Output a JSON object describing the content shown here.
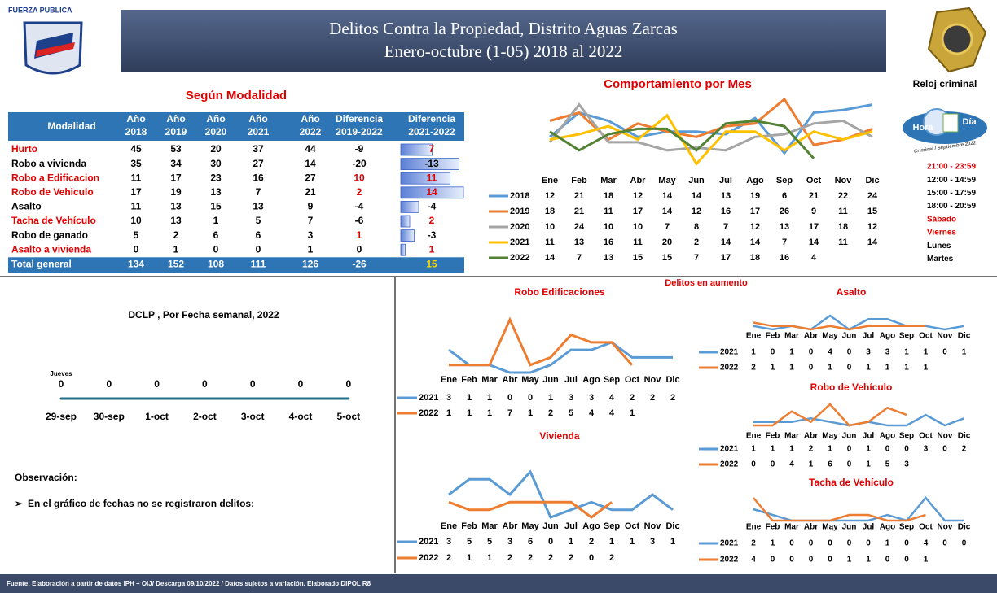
{
  "header": {
    "logo_text": "FUERZA PUBLICA",
    "title_line1": "Delitos Contra la Propiedad, Distrito Aguas Zarcas",
    "title_line2": "Enero-octubre (1-05) 2018 al 2022"
  },
  "table": {
    "title": "Según Modalidad",
    "columns": [
      [
        "Modalidad"
      ],
      [
        "Año",
        "2018"
      ],
      [
        "Año",
        "2019"
      ],
      [
        "Año",
        "2020"
      ],
      [
        "Año",
        "2021"
      ],
      [
        "Año",
        "2022"
      ],
      [
        "Diferencia",
        "2019-2022"
      ],
      [
        "Diferencia",
        "2021-2022"
      ]
    ],
    "rows": [
      {
        "name": "Hurto",
        "color": "#e00000",
        "values": [
          45,
          53,
          20,
          37,
          44,
          -9,
          7
        ]
      },
      {
        "name": "Robo a vivienda",
        "color": "#000000",
        "values": [
          35,
          34,
          30,
          27,
          14,
          -20,
          -13
        ]
      },
      {
        "name": "Robo a Edificacion",
        "color": "#e00000",
        "values": [
          11,
          17,
          23,
          16,
          27,
          10,
          11
        ]
      },
      {
        "name": "Robo de Vehiculo",
        "color": "#e00000",
        "values": [
          17,
          19,
          13,
          7,
          21,
          2,
          14
        ]
      },
      {
        "name": "Asalto",
        "color": "#000000",
        "values": [
          11,
          13,
          15,
          13,
          9,
          -4,
          -4
        ]
      },
      {
        "name": "Tacha de Vehículo",
        "color": "#e00000",
        "values": [
          10,
          13,
          1,
          5,
          7,
          -6,
          2
        ]
      },
      {
        "name": "Robo de ganado",
        "color": "#000000",
        "values": [
          5,
          2,
          6,
          6,
          3,
          1,
          -3
        ]
      },
      {
        "name": "Asalto a vivienda",
        "color": "#e00000",
        "values": [
          0,
          1,
          0,
          0,
          1,
          0,
          1
        ]
      }
    ],
    "total": {
      "name": "Total general",
      "values": [
        134,
        152,
        108,
        111,
        126,
        -26,
        15
      ]
    }
  },
  "clock": {
    "title": "Reloj criminal",
    "hour_label": "Hora",
    "day_label": "Día",
    "caption": "Criminal / Septiembre 2022",
    "items": [
      {
        "text": "21:00 - 23:59",
        "color": "#e00000"
      },
      {
        "text": "12:00 - 14:59",
        "color": "#000000"
      },
      {
        "text": "15:00 - 17:59",
        "color": "#000000"
      },
      {
        "text": "18:00 - 20:59",
        "color": "#000000"
      },
      {
        "text": "Sábado",
        "color": "#e00000"
      },
      {
        "text": "Viernes",
        "color": "#e00000"
      },
      {
        "text": "Lunes",
        "color": "#000000"
      },
      {
        "text": "Martes",
        "color": "#000000"
      }
    ]
  },
  "chart_data": [
    {
      "type": "line",
      "title": "Comportamiento por Mes",
      "categories": [
        "Ene",
        "Feb",
        "Mar",
        "Abr",
        "May",
        "Jun",
        "Jul",
        "Ago",
        "Sep",
        "Oct",
        "Nov",
        "Dic"
      ],
      "series": [
        {
          "name": "2018",
          "color": "#5b9bd5",
          "values": [
            12,
            21,
            18,
            12,
            14,
            14,
            13,
            19,
            6,
            21,
            22,
            24
          ]
        },
        {
          "name": "2019",
          "color": "#ed7d31",
          "values": [
            18,
            21,
            11,
            17,
            14,
            12,
            16,
            17,
            26,
            9,
            11,
            15
          ]
        },
        {
          "name": "2020",
          "color": "#a5a5a5",
          "values": [
            10,
            24,
            10,
            10,
            7,
            8,
            7,
            12,
            13,
            17,
            18,
            12
          ]
        },
        {
          "name": "2021",
          "color": "#ffc000",
          "values": [
            11,
            13,
            16,
            11,
            20,
            2,
            14,
            14,
            7,
            14,
            11,
            14
          ]
        },
        {
          "name": "2022",
          "color": "#548235",
          "values": [
            14,
            7,
            13,
            15,
            15,
            7,
            17,
            18,
            16,
            4,
            null,
            null
          ]
        }
      ],
      "annotation": "Delitos en aumento"
    },
    {
      "type": "weekly",
      "title": "DCLP , Por Fecha semanal, 2022",
      "categories": [
        "29-sep",
        "30-sep",
        "1-oct",
        "2-oct",
        "3-oct",
        "4-oct",
        "5-oct"
      ],
      "values": [
        0,
        0,
        0,
        0,
        0,
        0,
        0
      ],
      "annotation": "Jueves",
      "color": "#1f6f8b"
    },
    {
      "type": "line",
      "title": "Robo Edificaciones",
      "categories": [
        "Ene",
        "Feb",
        "Mar",
        "Abr",
        "May",
        "Jun",
        "Jul",
        "Ago",
        "Sep",
        "Oct",
        "Nov",
        "Dic"
      ],
      "series": [
        {
          "name": "2021",
          "color": "#5b9bd5",
          "values": [
            3,
            1,
            1,
            0,
            0,
            1,
            3,
            3,
            4,
            2,
            2,
            2
          ]
        },
        {
          "name": "2022",
          "color": "#ed7d31",
          "values": [
            1,
            1,
            1,
            7,
            1,
            2,
            5,
            4,
            4,
            1,
            null,
            null
          ]
        }
      ]
    },
    {
      "type": "line",
      "title": "Vivienda",
      "categories": [
        "Ene",
        "Feb",
        "Mar",
        "Abr",
        "May",
        "Jun",
        "Jul",
        "Ago",
        "Sep",
        "Oct",
        "Nov",
        "Dic"
      ],
      "series": [
        {
          "name": "2021",
          "color": "#5b9bd5",
          "values": [
            3,
            5,
            5,
            3,
            6,
            0,
            1,
            2,
            1,
            1,
            3,
            1
          ]
        },
        {
          "name": "2022",
          "color": "#ed7d31",
          "values": [
            2,
            1,
            1,
            2,
            2,
            2,
            2,
            0,
            2,
            null,
            null,
            null
          ]
        }
      ]
    },
    {
      "type": "line",
      "title": "Asalto",
      "categories": [
        "Ene",
        "Feb",
        "Mar",
        "Abr",
        "May",
        "Jun",
        "Jul",
        "Ago",
        "Sep",
        "Oct",
        "Nov",
        "Dic"
      ],
      "series": [
        {
          "name": "2021",
          "color": "#5b9bd5",
          "values": [
            1,
            0,
            1,
            0,
            4,
            0,
            3,
            3,
            1,
            1,
            0,
            1
          ]
        },
        {
          "name": "2022",
          "color": "#ed7d31",
          "values": [
            2,
            1,
            1,
            0,
            1,
            0,
            1,
            1,
            1,
            1,
            null,
            null
          ]
        }
      ]
    },
    {
      "type": "line",
      "title": "Robo de Vehículo",
      "categories": [
        "Ene",
        "Feb",
        "Mar",
        "Abr",
        "May",
        "Jun",
        "Jul",
        "Ago",
        "Sep",
        "Oct",
        "Nov",
        "Dic"
      ],
      "series": [
        {
          "name": "2021",
          "color": "#5b9bd5",
          "values": [
            1,
            1,
            1,
            2,
            1,
            0,
            1,
            0,
            0,
            3,
            0,
            2
          ]
        },
        {
          "name": "2022",
          "color": "#ed7d31",
          "values": [
            0,
            0,
            4,
            1,
            6,
            0,
            1,
            5,
            3,
            null,
            null,
            null
          ]
        }
      ]
    },
    {
      "type": "line",
      "title": "Tacha de Vehículo",
      "categories": [
        "Ene",
        "Feb",
        "Mar",
        "Abr",
        "May",
        "Jun",
        "Jul",
        "Ago",
        "Sep",
        "Oct",
        "Nov",
        "Dic"
      ],
      "series": [
        {
          "name": "2021",
          "color": "#5b9bd5",
          "values": [
            2,
            1,
            0,
            0,
            0,
            0,
            0,
            1,
            0,
            4,
            0,
            0
          ]
        },
        {
          "name": "2022",
          "color": "#ed7d31",
          "values": [
            4,
            0,
            0,
            0,
            0,
            1,
            1,
            0,
            0,
            1,
            null,
            null
          ]
        }
      ]
    }
  ],
  "observation": {
    "title": "Observación:",
    "text": "En el gráfico de fechas no se registraron  delitos:"
  },
  "footer": "Fuente: Elaboración a partir de datos IPH – OIJ/ Descarga 09/10/2022 / Datos sujetos a variación. Elaborado DIPOL R8"
}
